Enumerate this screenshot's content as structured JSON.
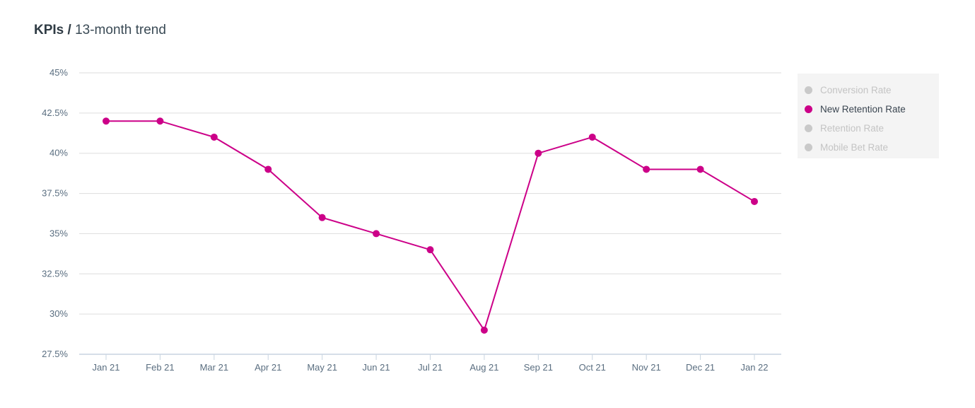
{
  "header": {
    "title_bold": "KPIs /",
    "title_rest": " 13-month trend"
  },
  "legend": [
    {
      "label": "Conversion Rate",
      "active": false
    },
    {
      "label": "New Retention Rate",
      "active": true
    },
    {
      "label": "Retention Rate",
      "active": false
    },
    {
      "label": "Mobile Bet Rate",
      "active": false
    }
  ],
  "colors": {
    "series": "#cc0088",
    "inactive": "#c9c9c9",
    "grid": "#dddddd",
    "axis": "#c8d4e0"
  },
  "chart_data": {
    "type": "line",
    "title": "KPIs / 13-month trend",
    "xlabel": "",
    "ylabel": "",
    "categories": [
      "Jan 21",
      "Feb 21",
      "Mar 21",
      "Apr 21",
      "May 21",
      "Jun 21",
      "Jul 21",
      "Aug 21",
      "Sep 21",
      "Oct 21",
      "Nov 21",
      "Dec 21",
      "Jan 22"
    ],
    "ylim": [
      27.5,
      45
    ],
    "yticks": [
      27.5,
      30,
      32.5,
      35,
      37.5,
      40,
      42.5,
      45
    ],
    "ytick_labels": [
      "27.5%",
      "30%",
      "32.5%",
      "35%",
      "37.5%",
      "40%",
      "42.5%",
      "45%"
    ],
    "grid": true,
    "legend_position": "right",
    "series": [
      {
        "name": "New Retention Rate",
        "values": [
          42,
          42,
          41,
          39,
          36,
          35,
          34,
          29,
          40,
          41,
          39,
          39,
          37
        ]
      }
    ]
  }
}
